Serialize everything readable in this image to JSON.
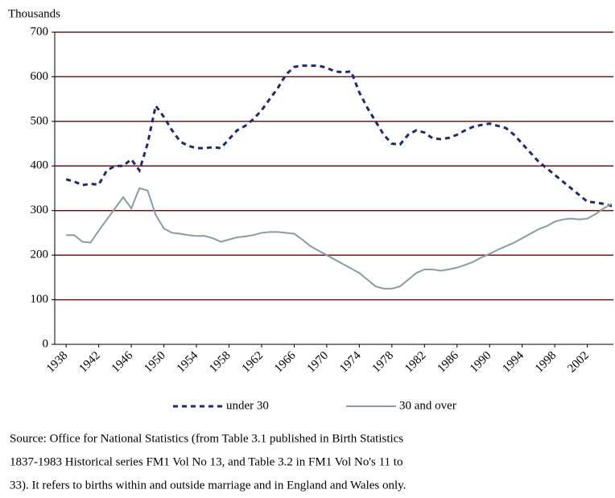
{
  "chart_data": {
    "type": "line",
    "ylabel": "Thousands",
    "x": [
      1938,
      1939,
      1940,
      1941,
      1942,
      1943,
      1944,
      1945,
      1946,
      1947,
      1948,
      1949,
      1950,
      1951,
      1952,
      1953,
      1954,
      1955,
      1956,
      1957,
      1958,
      1959,
      1960,
      1961,
      1962,
      1963,
      1964,
      1965,
      1966,
      1967,
      1968,
      1969,
      1970,
      1971,
      1972,
      1973,
      1974,
      1975,
      1976,
      1977,
      1978,
      1979,
      1980,
      1981,
      1982,
      1983,
      1984,
      1985,
      1986,
      1987,
      1988,
      1989,
      1990,
      1991,
      1992,
      1993,
      1994,
      1995,
      1996,
      1997,
      1998,
      1999,
      2000,
      2001,
      2002,
      2003,
      2004,
      2005
    ],
    "series": [
      {
        "name": "under 30",
        "color": "#1f2a6b",
        "dash": true,
        "values": [
          370,
          365,
          357,
          360,
          358,
          390,
          400,
          400,
          415,
          390,
          450,
          535,
          510,
          480,
          455,
          445,
          440,
          440,
          442,
          440,
          460,
          480,
          490,
          505,
          525,
          550,
          575,
          605,
          622,
          625,
          625,
          625,
          620,
          612,
          610,
          612,
          565,
          530,
          500,
          470,
          450,
          448,
          470,
          480,
          475,
          462,
          460,
          463,
          470,
          480,
          488,
          492,
          495,
          490,
          485,
          470,
          450,
          430,
          410,
          395,
          380,
          365,
          350,
          335,
          320,
          318,
          315,
          310
        ]
      },
      {
        "name": "30 and over",
        "color": "#8a9ba3",
        "dash": false,
        "values": [
          245,
          245,
          230,
          228,
          255,
          280,
          305,
          330,
          305,
          350,
          345,
          290,
          260,
          250,
          248,
          245,
          243,
          243,
          238,
          230,
          235,
          240,
          242,
          245,
          250,
          252,
          252,
          250,
          248,
          235,
          220,
          210,
          200,
          190,
          180,
          170,
          160,
          145,
          130,
          125,
          125,
          130,
          145,
          160,
          168,
          168,
          165,
          168,
          172,
          178,
          185,
          195,
          203,
          212,
          220,
          228,
          238,
          248,
          258,
          265,
          275,
          280,
          282,
          280,
          282,
          292,
          305,
          315
        ]
      }
    ],
    "xlim": [
      1936.6,
      2005.2
    ],
    "xticks": [
      1938,
      1942,
      1946,
      1950,
      1954,
      1958,
      1962,
      1966,
      1970,
      1974,
      1978,
      1982,
      1986,
      1990,
      1994,
      1998,
      2002
    ],
    "ylim": [
      0,
      700
    ],
    "yticks": [
      0,
      100,
      200,
      300,
      400,
      500,
      600,
      700
    ],
    "grid": true,
    "grid_color": "#6e1a1a",
    "source": [
      "Source: Office for National Statistics (from Table 3.1 published in Birth Statistics",
      "1837-1983 Historical series FM1 Vol No 13, and Table 3.2 in FM1 Vol No's 11 to",
      "33). It refers to births within and outside marriage and in England and Wales only."
    ]
  }
}
